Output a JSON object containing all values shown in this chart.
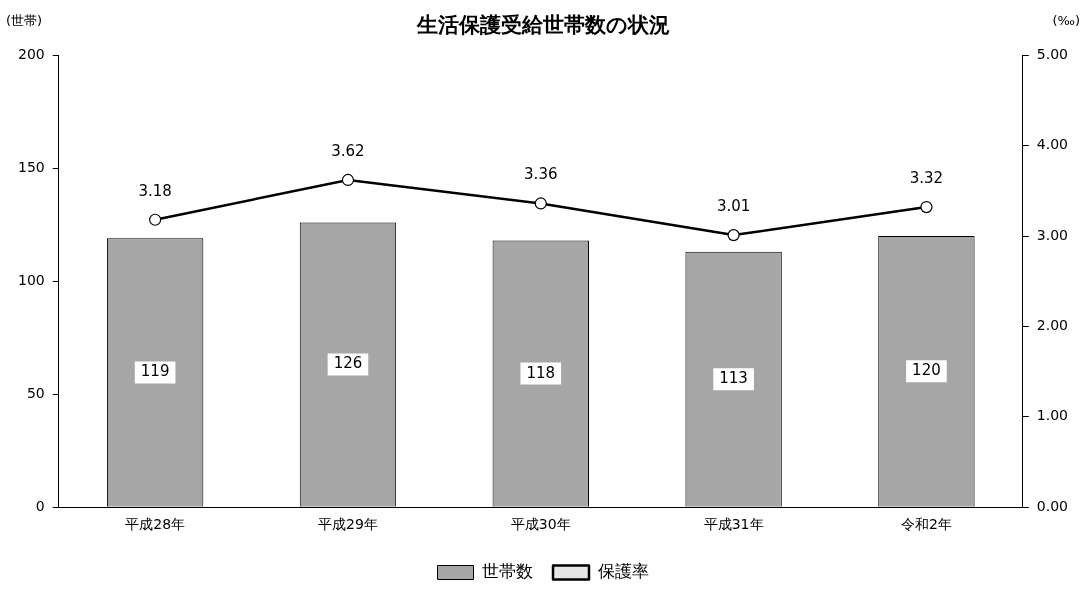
{
  "chart_data": {
    "type": "bar",
    "title": "生活保護受給世帯数の状況",
    "ylabel": "(世帯)",
    "y2label": "(‰)",
    "categories": [
      "平成28年",
      "平成29年",
      "平成30年",
      "平成31年",
      "令和2年"
    ],
    "series": [
      {
        "name": "世帯数",
        "color": "#a6a6a6",
        "values": [
          119,
          126,
          118,
          113,
          120
        ]
      },
      {
        "name": "保護率",
        "type": "line",
        "axis": "y2",
        "color": "#000000",
        "marker": "circle",
        "values": [
          3.18,
          3.62,
          3.36,
          3.01,
          3.32
        ]
      }
    ],
    "ylim": [
      0,
      200
    ],
    "yticks": [
      0,
      50,
      100,
      150,
      200
    ],
    "y2lim": [
      0,
      5
    ],
    "y2ticks": [
      {
        "value": 0,
        "label": "0.00"
      },
      {
        "value": 1,
        "label": "1.00"
      },
      {
        "value": 2,
        "label": "2.00"
      },
      {
        "value": 3,
        "label": "3.00"
      },
      {
        "value": 4,
        "label": "4.00"
      },
      {
        "value": 5,
        "label": "5.00"
      }
    ],
    "data_labels": true,
    "grid": false,
    "legend": "bottom"
  }
}
